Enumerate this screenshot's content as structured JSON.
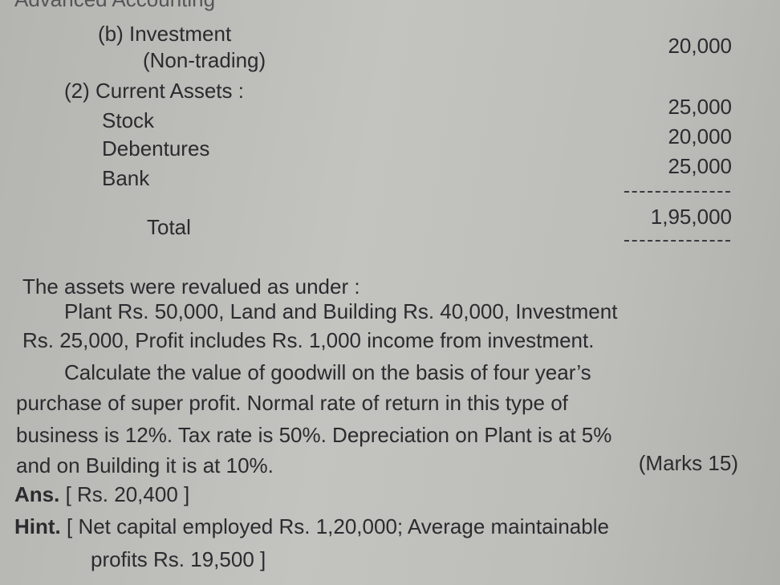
{
  "header": "Advanced Accounting",
  "table": {
    "investment_label": "(b) Investment",
    "investment_sub": "(Non-trading)",
    "investment_value": "20,000",
    "current_assets": "(2) Current Assets :",
    "rows": [
      {
        "label": "Stock",
        "value": "25,000"
      },
      {
        "label": "Debentures",
        "value": "20,000"
      },
      {
        "label": "Bank",
        "value": "25,000"
      }
    ],
    "total_label": "Total",
    "total_value": "1,95,000"
  },
  "body": {
    "lines": [
      "The assets were revalued as under :",
      "Plant Rs. 50,000, Land and Building Rs. 40,000, Investment",
      "Rs. 25,000, Profit includes Rs. 1,000 income from investment.",
      "Calculate the value of goodwill on the basis of four year’s",
      "purchase of super profit. Normal rate of return in this type of",
      "business is 12%. Tax rate is 50%. Depreciation on Plant is at 5%",
      "and on Building it is at 10%."
    ],
    "marks": "(Marks 15)",
    "ans_label": "Ans.",
    "ans_text": "[ Rs. 20,400 ]",
    "hint_label": "Hint.",
    "hint_text": "[ Net capital employed Rs. 1,20,000; Average maintainable",
    "hint_text2": "profits Rs. 19,500 ]"
  }
}
